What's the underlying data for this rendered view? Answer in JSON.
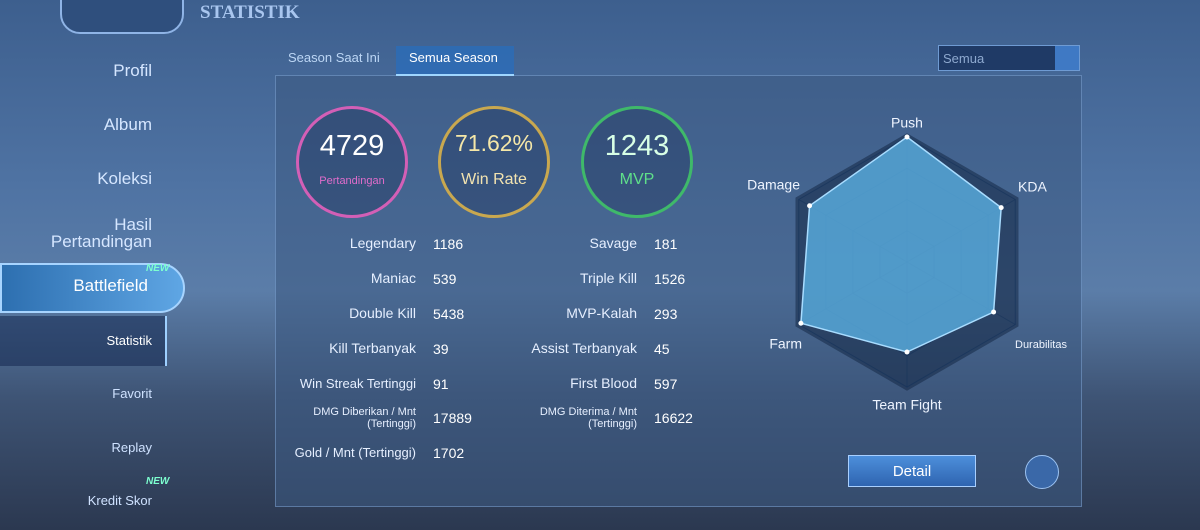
{
  "header": {
    "title": "STATISTIK"
  },
  "sidebar": {
    "items": [
      "Profil",
      "Album",
      "Koleksi",
      "Hasil\nPertandingan",
      "Battlefield",
      "Statistik",
      "Favorit",
      "Replay",
      "Kredit Skor"
    ],
    "badges": [
      "NEW",
      "NEW"
    ]
  },
  "tabs": [
    "Season Saat Ini",
    "Semua Season"
  ],
  "filter": "Semua",
  "summary": [
    {
      "value": 4729,
      "label": "Pertandingan"
    },
    {
      "value": "71.62%",
      "label": "Win Rate"
    },
    {
      "value": 1243,
      "label": "MVP"
    }
  ],
  "stats": {
    "left": [
      {
        "label": "Legendary",
        "value": 1186
      },
      {
        "label": "Maniac",
        "value": 539
      },
      {
        "label": "Double Kill",
        "value": 5438
      },
      {
        "label": "Kill Terbanyak",
        "value": 39
      },
      {
        "label": "Win Streak Tertinggi",
        "value": 91
      },
      {
        "label": "DMG Diberikan / Mnt\n(Tertinggi)",
        "value": 17889
      },
      {
        "label": "Gold / Mnt (Tertinggi)",
        "value": 1702
      }
    ],
    "right": [
      {
        "label": "Savage",
        "value": 181
      },
      {
        "label": "Triple Kill",
        "value": 1526
      },
      {
        "label": "MVP-Kalah",
        "value": 293
      },
      {
        "label": "Assist Terbanyak",
        "value": 45
      },
      {
        "label": "First Blood",
        "value": 597
      },
      {
        "label": "DMG Diterima / Mnt\n(Tertinggi)",
        "value": 16622
      }
    ]
  },
  "radar": {
    "type": "radar",
    "axes": [
      "Push",
      "KDA",
      "Durabilitas",
      "Team Fight",
      "Farm",
      "Damage"
    ],
    "values": [
      100,
      87,
      80,
      72,
      98,
      90
    ],
    "rlim": [
      0,
      100
    ]
  },
  "button": "Detail"
}
